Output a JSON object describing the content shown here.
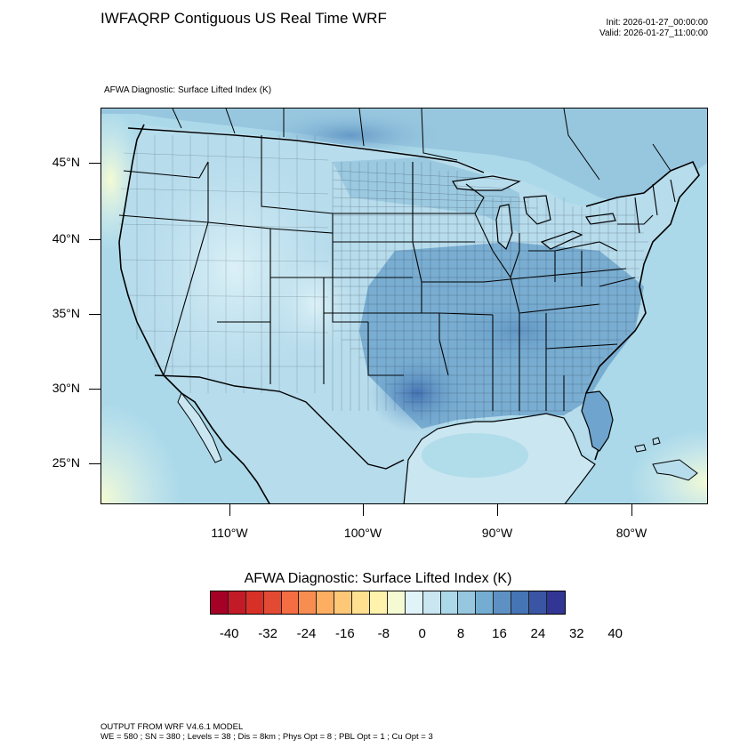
{
  "header": {
    "title": "IWFAQRP Contiguous US Real Time WRF",
    "init": "Init: 2026-01-27_00:00:00",
    "valid": "Valid: 2026-01-27_11:00:00"
  },
  "field_title": "AFWA Diagnostic: Surface Lifted Index   (K)",
  "map": {
    "lat_labels": [
      "45°N",
      "40°N",
      "35°N",
      "30°N",
      "25°N"
    ],
    "lon_labels": [
      "110°W",
      "100°W",
      "90°W",
      "80°W"
    ],
    "ocean_color": "#a9d2e7",
    "land_color": "#b7dcec",
    "warm_corner_color": "#e9f5de"
  },
  "colorbar": {
    "title": "AFWA Diagnostic: Surface Lifted Index  (K)",
    "colors": [
      "#a50026",
      "#c21b27",
      "#d73027",
      "#e34a33",
      "#f46d43",
      "#f88d52",
      "#fdae61",
      "#fec877",
      "#fee090",
      "#fff2ac",
      "#f4fbd2",
      "#e0f3f8",
      "#c9e6f1",
      "#abd9e9",
      "#97c7df",
      "#74add1",
      "#5d91c3",
      "#4575b4",
      "#3a55a4",
      "#313695"
    ],
    "labels": [
      "-40",
      "-32",
      "-24",
      "-16",
      "-8",
      "0",
      "8",
      "16",
      "24",
      "32",
      "40"
    ]
  },
  "footer": {
    "line1": "OUTPUT FROM WRF V4.6.1 MODEL",
    "line2": "WE = 580 ; SN = 380 ; Levels = 38 ; Dis = 8km ; Phys Opt = 8 ; PBL Opt = 1 ; Cu Opt = 3"
  }
}
